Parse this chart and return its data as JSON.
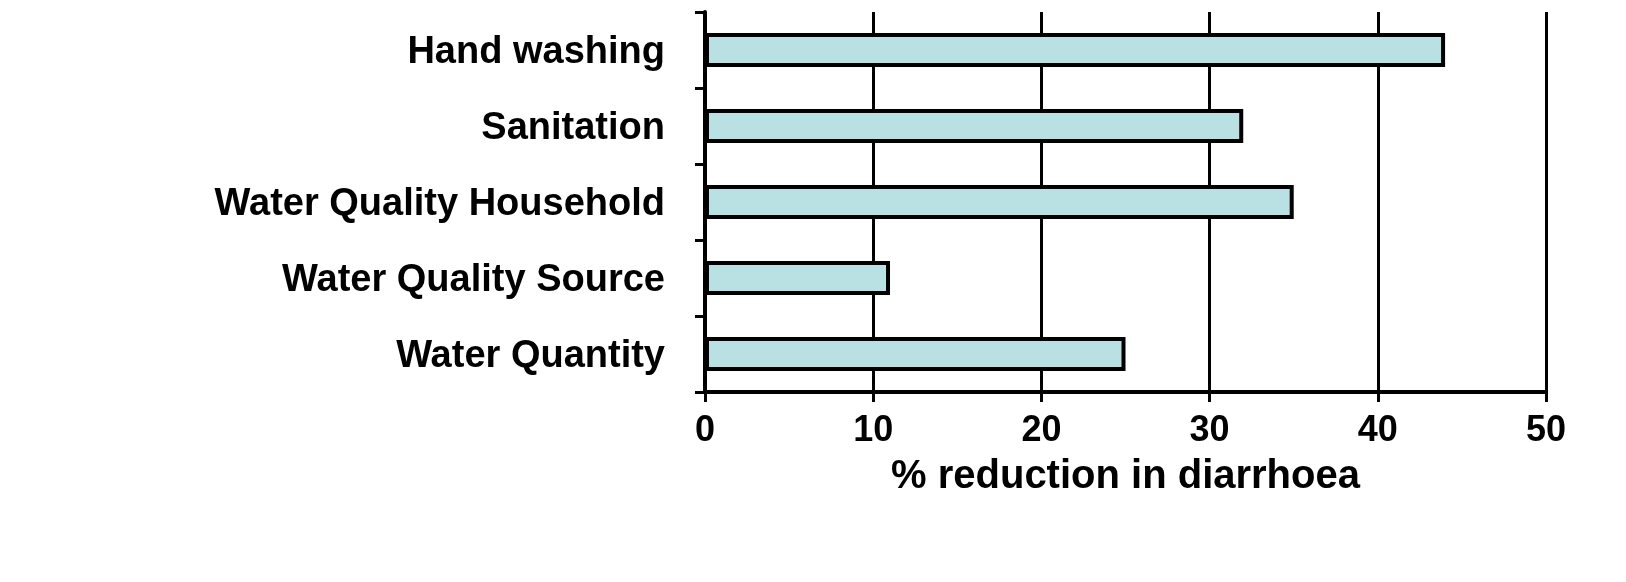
{
  "chart_data": {
    "type": "bar",
    "orientation": "horizontal",
    "xlabel": "% reduction in diarrhoea",
    "categories": [
      "Hand washing",
      "Sanitation",
      "Water Quality Household",
      "Water Quality Source",
      "Water Quantity"
    ],
    "values": [
      44,
      32,
      35,
      11,
      25
    ],
    "color": "#b9e0e3",
    "xlim": [
      0,
      50
    ],
    "xticks": [
      0,
      10,
      20,
      30,
      40,
      50
    ],
    "grid": "x"
  }
}
